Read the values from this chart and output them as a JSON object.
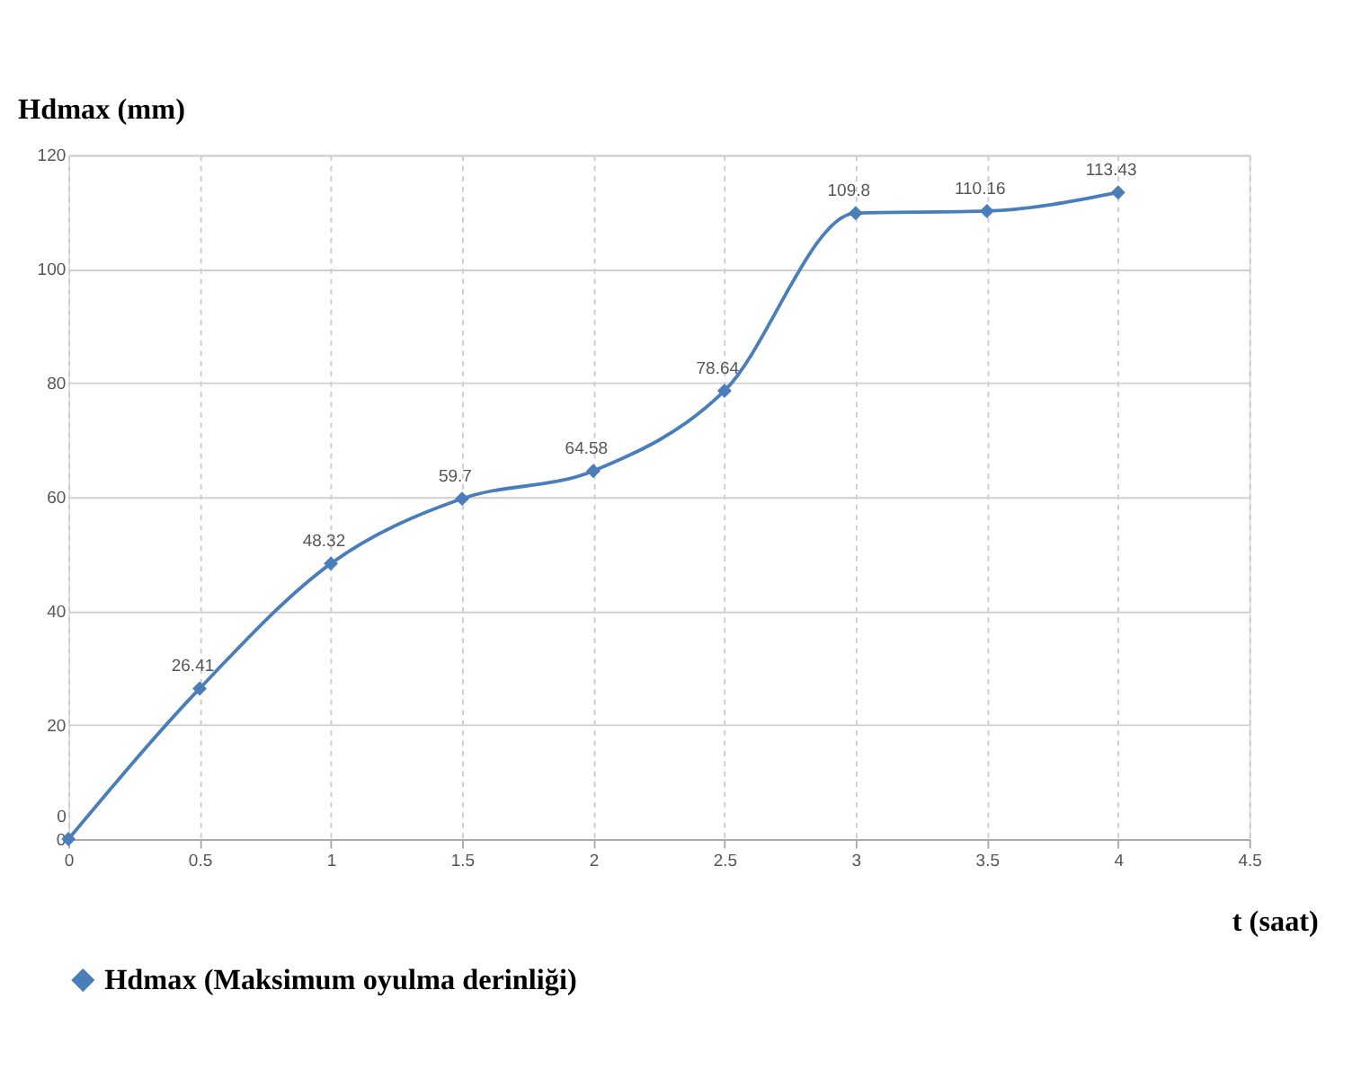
{
  "chart_data": {
    "type": "line",
    "ylabel": "Hdmax (mm)",
    "xlabel": "t (saat)",
    "x": [
      0,
      0.5,
      1,
      1.5,
      2,
      2.5,
      3,
      3.5,
      4
    ],
    "series": [
      {
        "name": "Hdmax (Maksimum oyulma derinliği)",
        "color": "#4a7ebb",
        "values": [
          0,
          26.41,
          48.32,
          59.7,
          64.58,
          78.64,
          109.8,
          110.16,
          113.43
        ]
      }
    ],
    "xlim": [
      0,
      4.5
    ],
    "xticks": [
      0,
      0.5,
      1,
      1.5,
      2,
      2.5,
      3,
      3.5,
      4,
      4.5
    ],
    "ylim": [
      0,
      120
    ],
    "yticks": [
      0,
      20,
      40,
      60,
      80,
      100,
      120
    ],
    "grid": true,
    "legend": "bottom",
    "marker": "diamond",
    "line_style": "solid",
    "data_labels": true
  }
}
